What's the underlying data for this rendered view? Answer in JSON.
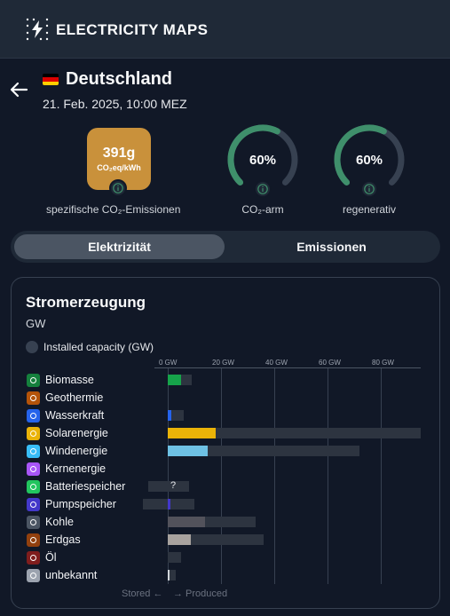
{
  "header": {
    "brand": "ELECTRICITY MAPS",
    "logo_icon": "lightning-icon"
  },
  "zone": {
    "country": "Deutschland",
    "flag_colors": [
      "#000000",
      "#dd0000",
      "#ffce00"
    ],
    "datetime": "21. Feb. 2025, 10:00 MEZ"
  },
  "metrics": {
    "co2_value": "391g",
    "co2_unit": "CO₂eq/kWh",
    "co2_color": "#c9913b",
    "co2_label": "spezifische CO₂-Emissionen",
    "lowcarbon_value": "60%",
    "lowcarbon_fraction": 0.6,
    "lowcarbon_label": "CO₂-arm",
    "renewable_value": "60%",
    "renewable_fraction": 0.6,
    "renewable_label": "regenerativ",
    "gauge_color": "#3f8f6b"
  },
  "tabs": {
    "active": "Elektrizität",
    "inactive": "Emissionen"
  },
  "panel": {
    "title": "Stromerzeugung",
    "unit": "GW",
    "capacity_toggle_label": "Installed capacity (GW)",
    "footer_stored": "Stored ←",
    "footer_produced": "→ Produced"
  },
  "chart_data": {
    "type": "bar",
    "orientation": "horizontal",
    "x_ticks": [
      "0 GW",
      "20 GW",
      "40 GW",
      "60 GW",
      "80 GW"
    ],
    "xlim": [
      -10,
      95
    ],
    "categories": [
      "Biomasse",
      "Geothermie",
      "Wasserkraft",
      "Solarenergie",
      "Windenergie",
      "Kernenergie",
      "Batteriespeicher",
      "Pumpspeicher",
      "Kohle",
      "Erdgas",
      "Öl",
      "unbekannt"
    ],
    "icons": [
      "leaf-icon",
      "geothermal-icon",
      "water-icon",
      "sun-icon",
      "wind-icon",
      "atom-icon",
      "battery-icon",
      "pump-storage-icon",
      "coal-icon",
      "gas-icon",
      "oil-icon",
      "unknown-icon"
    ],
    "icon_colors": [
      "#15803d",
      "#b45309",
      "#2563eb",
      "#eab308",
      "#38bdf8",
      "#a855f7",
      "#22c55e",
      "#4338ca",
      "#4b5563",
      "#92400e",
      "#7f1d1d",
      "#9ca3af"
    ],
    "series": [
      {
        "name": "Produced",
        "values": [
          5,
          0,
          1.2,
          18,
          15,
          0,
          0,
          1,
          14,
          8.5,
          0,
          0.5
        ],
        "colors": [
          "#16a34a",
          "#b45309",
          "#2563eb",
          "#eab308",
          "#6ec1e4",
          "#a855f7",
          "#22c55e",
          "#4338ca",
          "#52525b",
          "#a8a29e",
          "#7f1d1d",
          "#d1d5db"
        ]
      },
      {
        "name": "Capacity range",
        "min": [
          0,
          0,
          0,
          0,
          0,
          0,
          -7.5,
          -9.5,
          0,
          0,
          0,
          0
        ],
        "max": [
          9,
          0,
          6,
          95,
          72,
          0,
          8,
          10,
          33,
          36,
          5,
          3
        ]
      }
    ],
    "unknown_marker": "?"
  }
}
